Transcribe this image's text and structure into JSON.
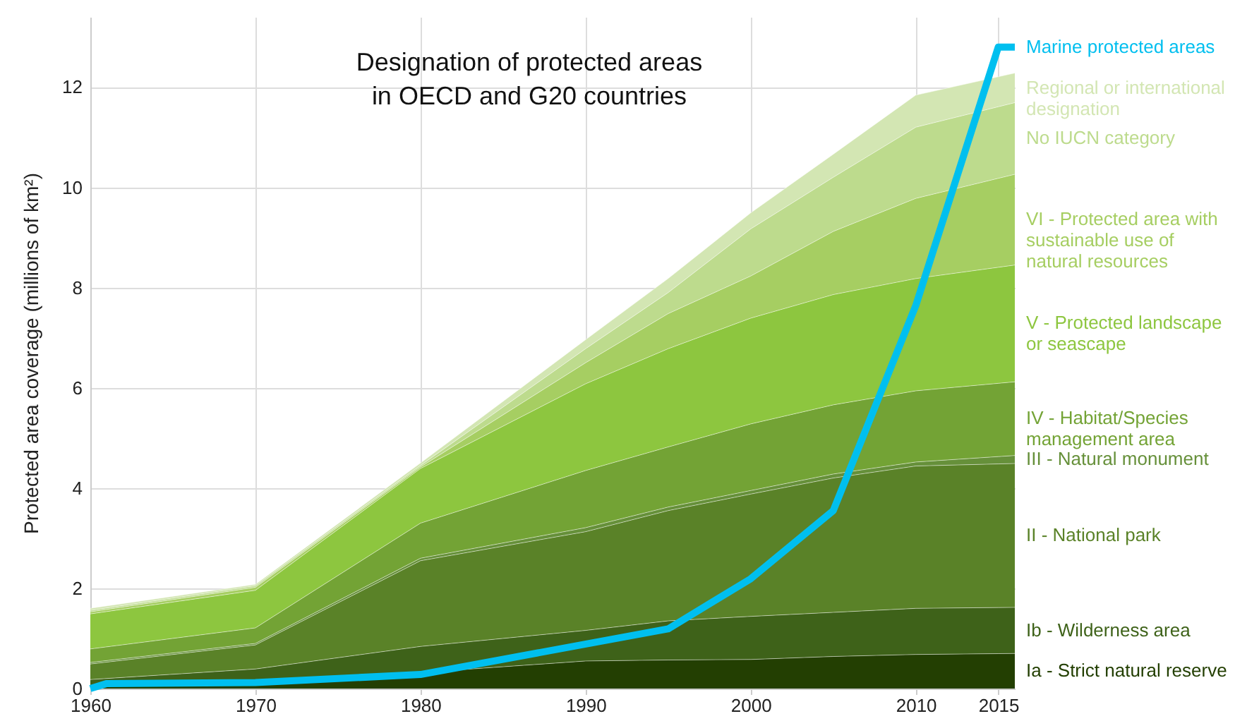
{
  "chart_data": {
    "type": "area",
    "stacked": true,
    "title": "Designation of protected areas in OECD and G20 countries",
    "ylabel": "Protected area coverage (millions of km²)",
    "x": [
      1960,
      1970,
      1980,
      1990,
      1995,
      2000,
      2005,
      2010,
      2016
    ],
    "xlim": [
      1960,
      2016
    ],
    "xticks": [
      1960,
      1970,
      1980,
      1990,
      2000,
      2010,
      2015
    ],
    "ylim": [
      0,
      13.4
    ],
    "yticks": [
      0,
      2,
      4,
      6,
      8,
      10,
      12
    ],
    "grid": true,
    "series": [
      {
        "name": "Ia - Strict natural reserve",
        "color": "#233f02",
        "values": [
          0.05,
          0.12,
          0.32,
          0.55,
          0.57,
          0.58,
          0.64,
          0.68,
          0.7
        ]
      },
      {
        "name": "Ib - Wilderness area",
        "color": "#3e6219",
        "values": [
          0.13,
          0.27,
          0.52,
          0.61,
          0.78,
          0.86,
          0.88,
          0.92,
          0.92
        ]
      },
      {
        "name": "II - National park",
        "color": "#5a8228",
        "values": [
          0.31,
          0.48,
          1.71,
          1.97,
          2.2,
          2.44,
          2.68,
          2.84,
          2.87
        ]
      },
      {
        "name": "III - Natural monument",
        "color": "#66903a",
        "values": [
          0.03,
          0.03,
          0.05,
          0.08,
          0.07,
          0.07,
          0.08,
          0.08,
          0.16
        ]
      },
      {
        "name": "IV - Habitat/Species management area",
        "color": "#73a335",
        "values": [
          0.27,
          0.31,
          0.7,
          1.14,
          1.2,
          1.33,
          1.38,
          1.42,
          1.47
        ]
      },
      {
        "name": "V - Protected landscape or seascape",
        "color": "#8dc63f",
        "values": [
          0.7,
          0.75,
          1.09,
          1.73,
          1.96,
          2.11,
          2.2,
          2.24,
          2.33
        ]
      },
      {
        "name": "VI - Protected area with sustainable use of natural resources",
        "color": "#a6ce62",
        "values": [
          0.04,
          0.06,
          0.03,
          0.42,
          0.7,
          0.84,
          1.26,
          1.6,
          1.81
        ]
      },
      {
        "name": "No IUCN category",
        "color": "#bddb8d",
        "values": [
          0.03,
          0.03,
          0.03,
          0.28,
          0.42,
          0.94,
          1.08,
          1.42,
          1.43
        ]
      },
      {
        "name": "Regional or international designation",
        "color": "#d3e6b3",
        "values": [
          0.04,
          0.03,
          0.05,
          0.18,
          0.28,
          0.32,
          0.46,
          0.64,
          0.59
        ]
      },
      {
        "name": "Marine protected areas",
        "type": "line",
        "color": "#00bfef",
        "x": [
          1960,
          1961,
          1970,
          1980,
          1995,
          2000,
          2005,
          2010,
          2015,
          2016
        ],
        "values": [
          0.0,
          0.1,
          0.12,
          0.28,
          1.19,
          2.19,
          3.55,
          7.64,
          12.8,
          12.8
        ]
      }
    ]
  }
}
